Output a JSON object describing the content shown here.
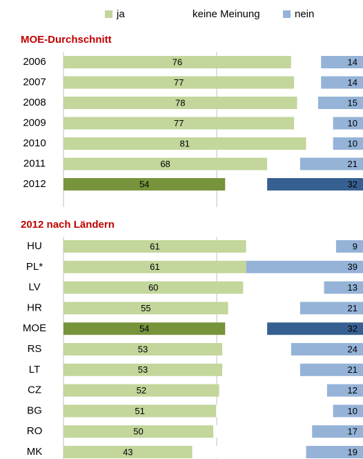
{
  "chart_data": [
    {
      "type": "stacked_bar_horizontal",
      "title": "MOE-Durchschnitt",
      "categories": [
        "2006",
        "2007",
        "2008",
        "2009",
        "2010",
        "2011",
        "2012"
      ],
      "xlim": [
        0,
        100
      ],
      "highlight_index": 6,
      "series": [
        {
          "name": "ja",
          "color": "#c3d69b",
          "highlight_color": "#77933c",
          "values": [
            76,
            77,
            78,
            77,
            81,
            68,
            54
          ],
          "labels": true
        },
        {
          "name": "keine Meinung",
          "color": "#ffffff",
          "highlight_color": "#ffffff",
          "values": [
            10,
            9,
            7,
            13,
            9,
            11,
            14
          ],
          "labels": false
        },
        {
          "name": "nein",
          "color": "#95b3d7",
          "highlight_color": "#376092",
          "values": [
            14,
            14,
            15,
            10,
            10,
            21,
            32
          ],
          "labels": true
        }
      ]
    },
    {
      "type": "stacked_bar_horizontal",
      "title": "2012 nach Ländern",
      "categories": [
        "HU",
        "PL*",
        "LV",
        "HR",
        "MOE",
        "RS",
        "LT",
        "CZ",
        "BG",
        "RO",
        "MK"
      ],
      "xlim": [
        0,
        100
      ],
      "highlight_index": 4,
      "series": [
        {
          "name": "ja",
          "color": "#c3d69b",
          "highlight_color": "#77933c",
          "values": [
            61,
            61,
            60,
            55,
            54,
            53,
            53,
            52,
            51,
            50,
            43
          ],
          "labels": true
        },
        {
          "name": "keine Meinung",
          "color": "#ffffff",
          "highlight_color": "#ffffff",
          "values": [
            30,
            0,
            27,
            24,
            14,
            23,
            26,
            36,
            39,
            33,
            38
          ],
          "labels": false
        },
        {
          "name": "nein",
          "color": "#95b3d7",
          "highlight_color": "#376092",
          "values": [
            9,
            39,
            13,
            21,
            32,
            24,
            21,
            12,
            10,
            17,
            19
          ],
          "labels": true
        }
      ]
    }
  ]
}
